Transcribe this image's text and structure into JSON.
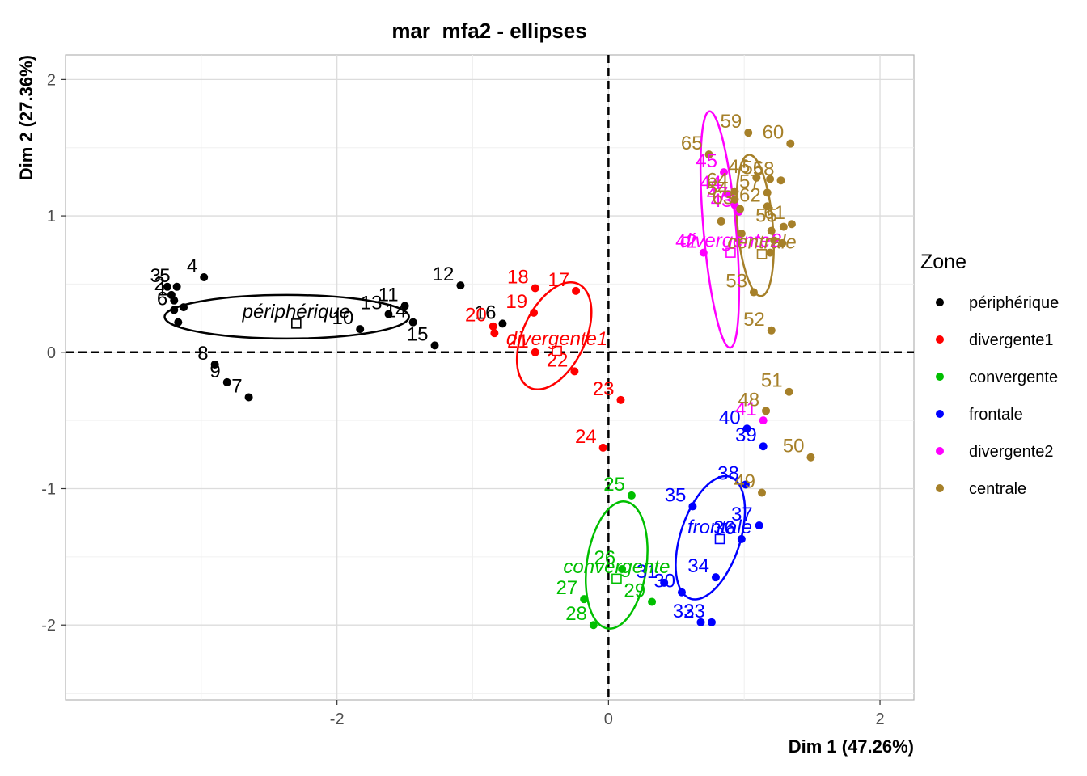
{
  "chart_data": {
    "type": "scatter",
    "title": "mar_mfa2 - ellipses",
    "xlabel": "Dim 1 (47.26%)",
    "ylabel": "Dim 2 (27.36%)",
    "xlim": [
      -4.0,
      2.25
    ],
    "ylim": [
      -2.55,
      2.18
    ],
    "x_ticks": [
      {
        "value": -2,
        "label": "-2"
      },
      {
        "value": 0,
        "label": "0"
      },
      {
        "value": 2,
        "label": "2"
      }
    ],
    "y_ticks": [
      {
        "value": 2,
        "label": "2"
      },
      {
        "value": 1,
        "label": "1"
      },
      {
        "value": 0,
        "label": "0"
      },
      {
        "value": -1,
        "label": "-1"
      },
      {
        "value": -2,
        "label": "-2"
      }
    ],
    "grid": true,
    "reference_lines": {
      "x": 0,
      "y": 0,
      "style": "dashed"
    },
    "legend": {
      "title": "Zone",
      "position": "right"
    },
    "series": [
      {
        "name": "périphérique",
        "color": "#000000",
        "mean": {
          "x": -2.3,
          "y": 0.21,
          "label": "périphérique"
        },
        "ellipse": {
          "cx": -2.37,
          "cy": 0.26,
          "rx": 0.9,
          "ry": 0.16,
          "angle": 0
        },
        "points": [
          {
            "id": "3",
            "x": -3.25,
            "y": 0.48
          },
          {
            "id": "5",
            "x": -3.18,
            "y": 0.48
          },
          {
            "id": "4",
            "x": -2.98,
            "y": 0.55
          },
          {
            "id": "2",
            "x": -3.22,
            "y": 0.42
          },
          {
            "id": "1",
            "x": -3.2,
            "y": 0.38
          },
          {
            "id": "6",
            "x": -3.2,
            "y": 0.31
          },
          {
            "id": "",
            "x": -3.13,
            "y": 0.33
          },
          {
            "id": "",
            "x": -3.17,
            "y": 0.22
          },
          {
            "id": "8",
            "x": -2.9,
            "y": -0.09
          },
          {
            "id": "9",
            "x": -2.81,
            "y": -0.22
          },
          {
            "id": "7",
            "x": -2.65,
            "y": -0.33
          },
          {
            "id": "10",
            "x": -1.83,
            "y": 0.17
          },
          {
            "id": "13",
            "x": -1.62,
            "y": 0.28
          },
          {
            "id": "11",
            "x": -1.5,
            "y": 0.34
          },
          {
            "id": "14",
            "x": -1.44,
            "y": 0.22
          },
          {
            "id": "15",
            "x": -1.28,
            "y": 0.05
          },
          {
            "id": "12",
            "x": -1.09,
            "y": 0.49
          },
          {
            "id": "16",
            "x": -0.78,
            "y": 0.21
          }
        ]
      },
      {
        "name": "divergente1",
        "color": "#ff0000",
        "mean": {
          "x": -0.38,
          "y": 0.01,
          "label": "divergente1"
        },
        "ellipse": {
          "cx": -0.4,
          "cy": 0.12,
          "rx": 0.23,
          "ry": 0.42,
          "angle": 25
        },
        "points": [
          {
            "id": "18",
            "x": -0.54,
            "y": 0.47
          },
          {
            "id": "17",
            "x": -0.24,
            "y": 0.45
          },
          {
            "id": "19",
            "x": -0.55,
            "y": 0.29
          },
          {
            "id": "20",
            "x": -0.85,
            "y": 0.19
          },
          {
            "id": "",
            "x": -0.84,
            "y": 0.14
          },
          {
            "id": "21",
            "x": -0.54,
            "y": 0.0
          },
          {
            "id": "22",
            "x": -0.25,
            "y": -0.14
          },
          {
            "id": "23",
            "x": 0.09,
            "y": -0.35
          },
          {
            "id": "24",
            "x": -0.04,
            "y": -0.7
          }
        ]
      },
      {
        "name": "convergente",
        "color": "#00bf00",
        "mean": {
          "x": 0.06,
          "y": -1.66,
          "label": "convergente"
        },
        "ellipse": {
          "cx": 0.06,
          "cy": -1.56,
          "rx": 0.22,
          "ry": 0.47,
          "angle": 8
        },
        "points": [
          {
            "id": "25",
            "x": 0.17,
            "y": -1.05
          },
          {
            "id": "26",
            "x": 0.1,
            "y": -1.59
          },
          {
            "id": "27",
            "x": -0.18,
            "y": -1.81
          },
          {
            "id": "28",
            "x": -0.11,
            "y": -2.0
          },
          {
            "id": "29",
            "x": 0.32,
            "y": -1.83
          }
        ]
      },
      {
        "name": "frontale",
        "color": "#0000ff",
        "mean": {
          "x": 0.82,
          "y": -1.37,
          "label": "frontale"
        },
        "ellipse": {
          "cx": 0.75,
          "cy": -1.36,
          "rx": 0.22,
          "ry": 0.47,
          "angle": 18
        },
        "points": [
          {
            "id": "40",
            "x": 1.02,
            "y": -0.56
          },
          {
            "id": "39",
            "x": 1.14,
            "y": -0.69
          },
          {
            "id": "38",
            "x": 1.01,
            "y": -0.97
          },
          {
            "id": "35",
            "x": 0.62,
            "y": -1.13
          },
          {
            "id": "37",
            "x": 1.11,
            "y": -1.27
          },
          {
            "id": "36",
            "x": 0.98,
            "y": -1.37
          },
          {
            "id": "34",
            "x": 0.79,
            "y": -1.65
          },
          {
            "id": "31",
            "x": 0.41,
            "y": -1.69
          },
          {
            "id": "30",
            "x": 0.54,
            "y": -1.76
          },
          {
            "id": "32",
            "x": 0.68,
            "y": -1.98
          },
          {
            "id": "33",
            "x": 0.76,
            "y": -1.98
          }
        ]
      },
      {
        "name": "divergente2",
        "color": "#ff00ff",
        "mean": {
          "x": 0.9,
          "y": 0.73,
          "label": "divergente2"
        },
        "ellipse": {
          "cx": 0.82,
          "cy": 0.9,
          "rx": 0.12,
          "ry": 0.87,
          "angle": -5
        },
        "points": [
          {
            "id": "45",
            "x": 0.85,
            "y": 1.32
          },
          {
            "id": "44",
            "x": 0.88,
            "y": 1.16
          },
          {
            "id": "43",
            "x": 0.96,
            "y": 1.03
          },
          {
            "id": "47",
            "x": 0.93,
            "y": 1.08
          },
          {
            "id": "42",
            "x": 0.7,
            "y": 0.73
          },
          {
            "id": "41",
            "x": 1.14,
            "y": -0.5
          }
        ]
      },
      {
        "name": "centrale",
        "color": "#a68029",
        "mean": {
          "x": 1.13,
          "y": 0.72,
          "label": "centrale"
        },
        "ellipse": {
          "cx": 1.08,
          "cy": 0.93,
          "rx": 0.13,
          "ry": 0.52,
          "angle": -5
        },
        "points": [
          {
            "id": "59",
            "x": 1.03,
            "y": 1.61
          },
          {
            "id": "60",
            "x": 1.34,
            "y": 1.53
          },
          {
            "id": "65",
            "x": 0.74,
            "y": 1.45
          },
          {
            "id": "46",
            "x": 1.09,
            "y": 1.28
          },
          {
            "id": "56",
            "x": 1.19,
            "y": 1.27
          },
          {
            "id": "58",
            "x": 1.27,
            "y": 1.26
          },
          {
            "id": "64",
            "x": 0.93,
            "y": 1.18
          },
          {
            "id": "57",
            "x": 1.17,
            "y": 1.17
          },
          {
            "id": "54",
            "x": 0.93,
            "y": 1.12
          },
          {
            "id": "62",
            "x": 1.17,
            "y": 1.07
          },
          {
            "id": "63",
            "x": 0.97,
            "y": 1.05
          },
          {
            "id": "61",
            "x": 1.35,
            "y": 0.94
          },
          {
            "id": "55",
            "x": 1.29,
            "y": 0.92
          },
          {
            "id": "",
            "x": 0.83,
            "y": 0.96
          },
          {
            "id": "",
            "x": 1.2,
            "y": 0.89
          },
          {
            "id": "",
            "x": 0.98,
            "y": 0.87
          },
          {
            "id": "",
            "x": 1.22,
            "y": 0.82
          },
          {
            "id": "",
            "x": 1.28,
            "y": 0.8
          },
          {
            "id": "",
            "x": 1.19,
            "y": 0.73
          },
          {
            "id": "53",
            "x": 1.07,
            "y": 0.44
          },
          {
            "id": "52",
            "x": 1.2,
            "y": 0.16
          },
          {
            "id": "51",
            "x": 1.33,
            "y": -0.29
          },
          {
            "id": "48",
            "x": 1.16,
            "y": -0.43
          },
          {
            "id": "50",
            "x": 1.49,
            "y": -0.77
          },
          {
            "id": "49",
            "x": 1.13,
            "y": -1.03
          }
        ]
      }
    ]
  }
}
